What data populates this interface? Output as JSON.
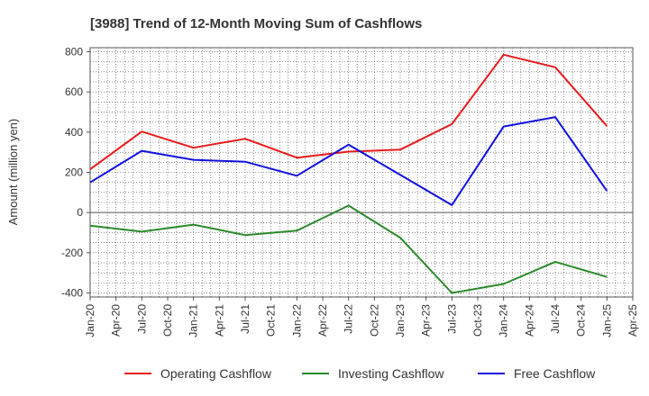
{
  "chart_data": {
    "type": "line",
    "title": "[3988]  Trend of 12-Month Moving Sum of Cashflows",
    "ylabel": "Amount (million yen)",
    "xlabel": "",
    "ylim": [
      -420,
      820
    ],
    "yticks": [
      -400,
      -200,
      0,
      200,
      400,
      600,
      800
    ],
    "x_tick_labels": [
      "Jan-20",
      "Apr-20",
      "Jul-20",
      "Oct-20",
      "Jan-21",
      "Apr-21",
      "Jul-21",
      "Oct-21",
      "Jan-22",
      "Apr-22",
      "Jul-22",
      "Oct-22",
      "Jan-23",
      "Apr-23",
      "Jul-23",
      "Oct-23",
      "Jan-24",
      "Apr-24",
      "Jul-24",
      "Oct-24",
      "Jan-25",
      "Apr-25"
    ],
    "x": [
      "Jan-20",
      "Jul-20",
      "Jan-21",
      "Jul-21",
      "Jan-22",
      "Jul-22",
      "Jan-23",
      "Jul-23",
      "Jan-24",
      "Jul-24",
      "Jan-25"
    ],
    "grid": true,
    "legend_position": "bottom",
    "series": [
      {
        "name": "Operating Cashflow",
        "color": "#e8191b",
        "values": [
          215,
          403,
          322,
          367,
          273,
          303,
          313,
          440,
          785,
          723,
          430
        ]
      },
      {
        "name": "Investing Cashflow",
        "color": "#2a8a2a",
        "values": [
          -65,
          -95,
          -60,
          -112,
          -90,
          35,
          -125,
          -400,
          -355,
          -245,
          -320
        ]
      },
      {
        "name": "Free Cashflow",
        "color": "#1111dd",
        "values": [
          150,
          307,
          262,
          253,
          183,
          338,
          188,
          37,
          428,
          475,
          108
        ]
      }
    ]
  }
}
